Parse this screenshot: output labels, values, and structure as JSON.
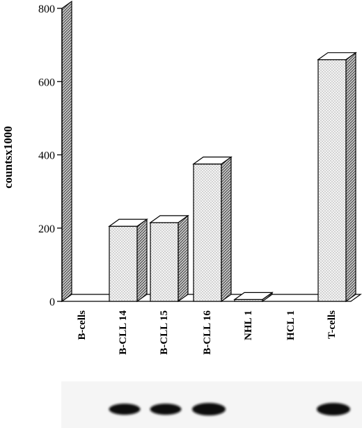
{
  "chart_data": {
    "type": "bar",
    "title": "",
    "xlabel": "",
    "ylabel": "countsx1000",
    "ylim": [
      0,
      800
    ],
    "yticks": [
      "0",
      "200",
      "400",
      "600",
      "800"
    ],
    "categories": [
      "B-cells",
      "B-CLL 14",
      "B-CLL 15",
      "B-CLL 16",
      "NHL 1",
      "HCL 1",
      "T-cells"
    ],
    "values": [
      0,
      205,
      215,
      375,
      5,
      0,
      660
    ],
    "style": "3d",
    "grid": false,
    "legend": "none",
    "colors": {
      "bar_face": "#f4f4f4",
      "dot": "#555555",
      "stroke": "#000000",
      "side_hatch": "#333333"
    }
  },
  "blot": {
    "lanes_with_band": [
      false,
      true,
      true,
      true,
      false,
      false,
      true
    ],
    "band_intensity": [
      0,
      0.75,
      0.75,
      1.0,
      0,
      0,
      1.0
    ]
  }
}
